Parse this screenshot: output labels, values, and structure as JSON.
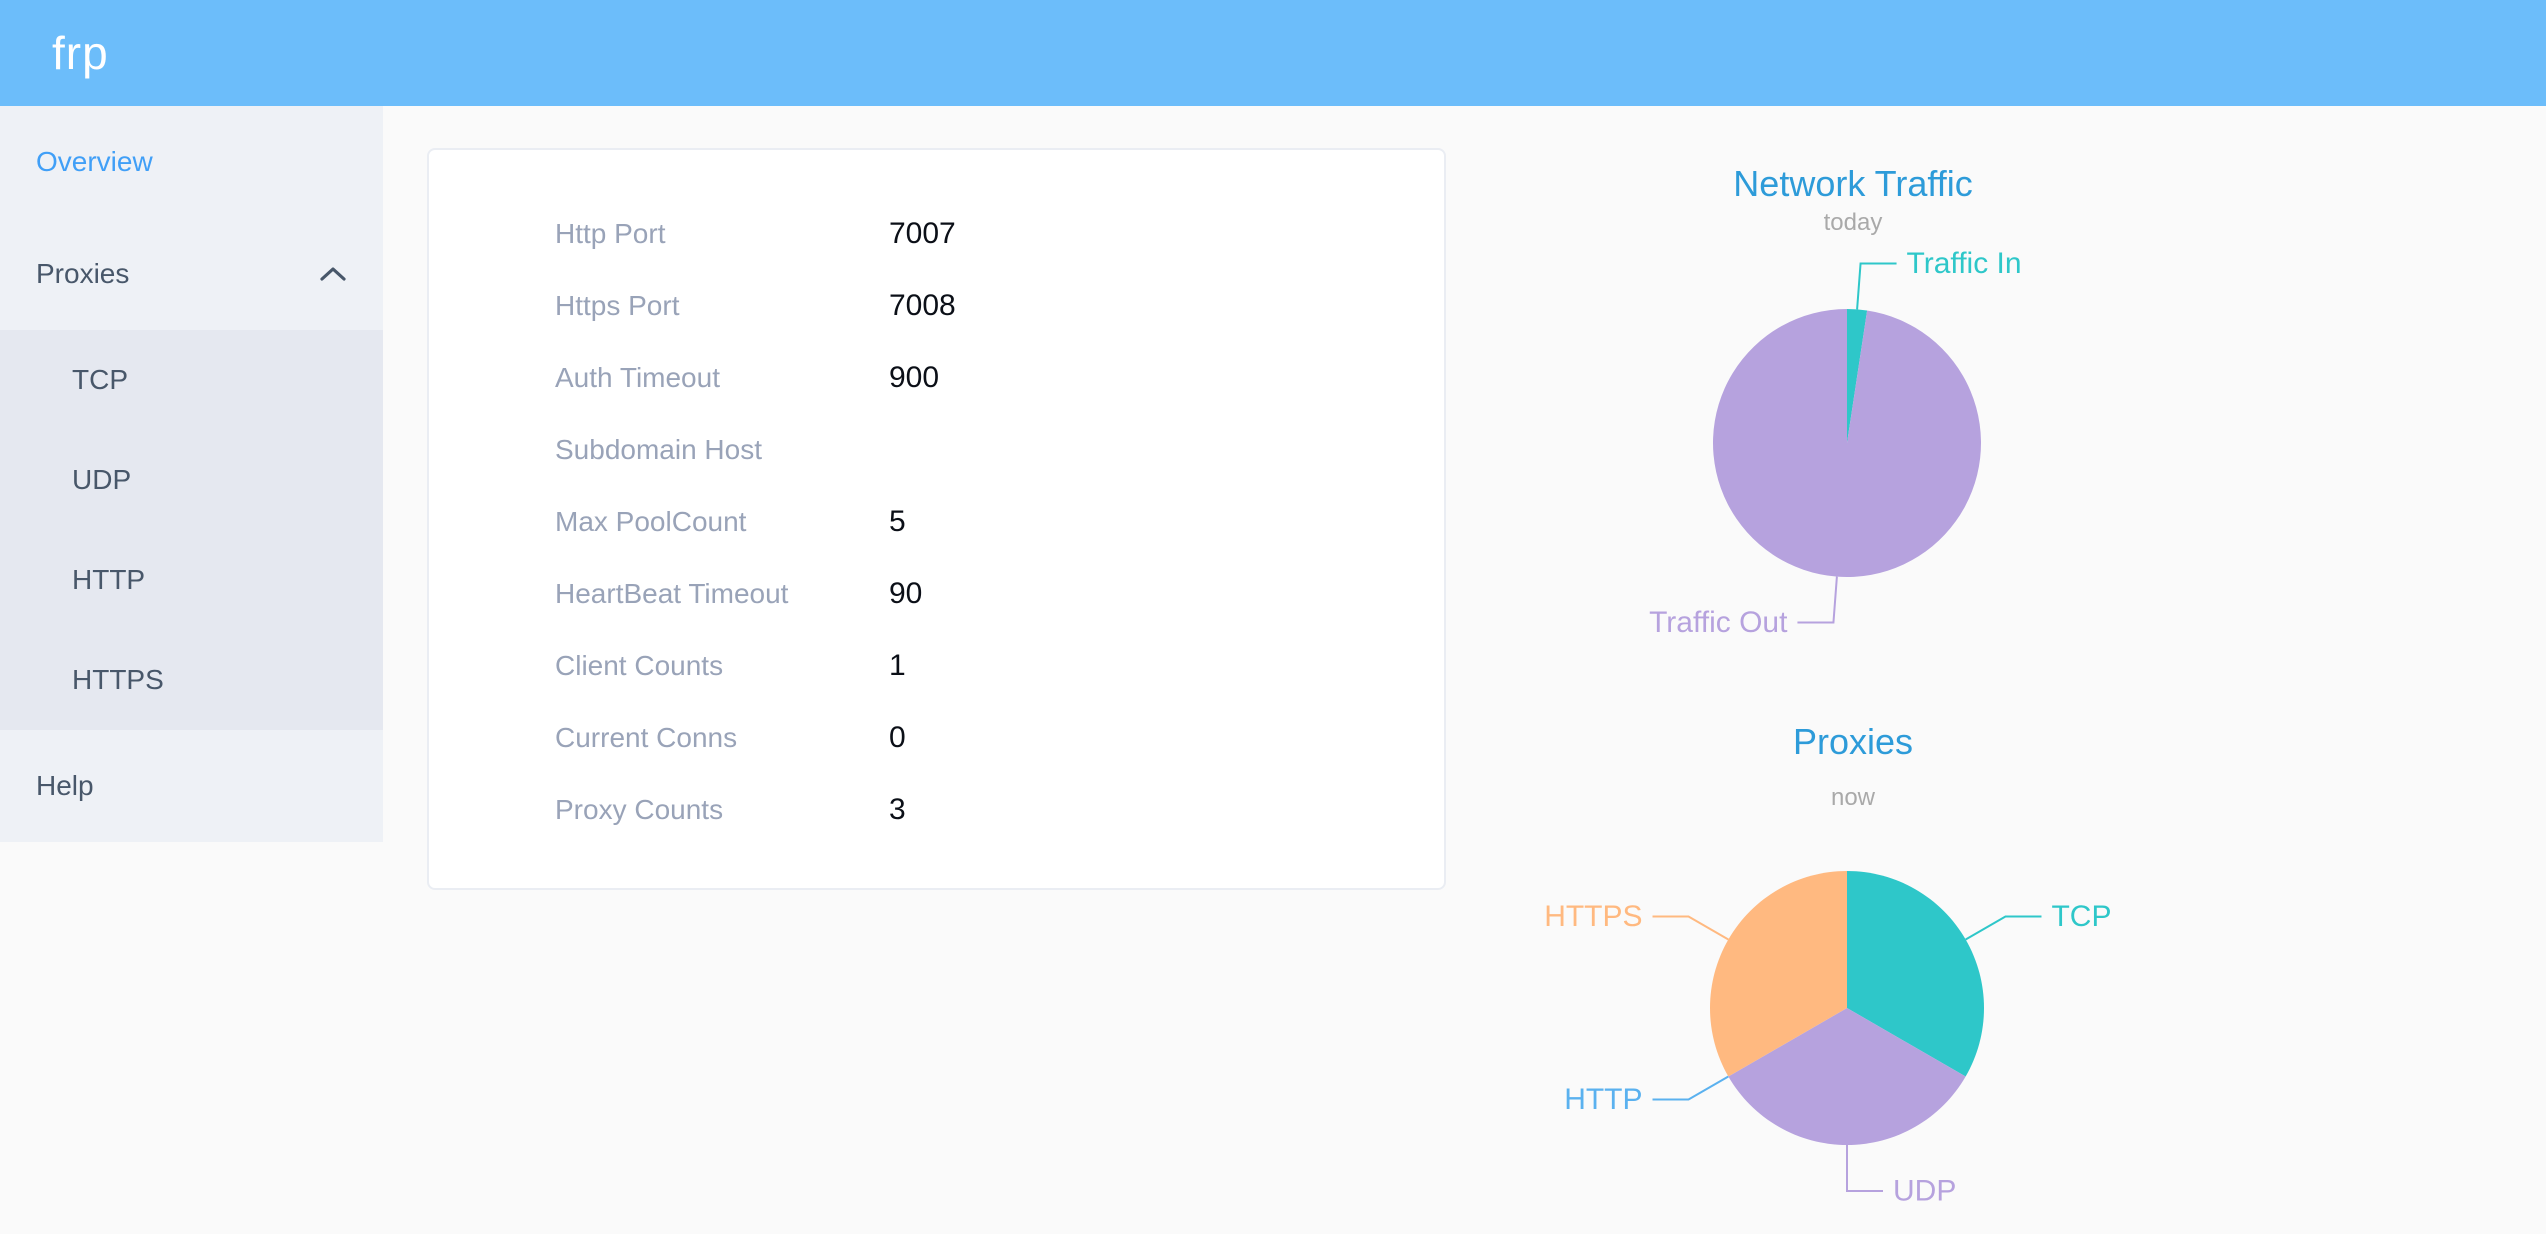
{
  "header": {
    "logo": "frp"
  },
  "sidebar": {
    "items": [
      {
        "label": "Overview",
        "active": true
      },
      {
        "label": "Proxies",
        "expanded": true
      },
      {
        "label": "Help"
      }
    ],
    "proxies_children": [
      "TCP",
      "UDP",
      "HTTP",
      "HTTPS"
    ]
  },
  "overview_card": {
    "rows": [
      {
        "label": "Http Port",
        "value": "7007"
      },
      {
        "label": "Https Port",
        "value": "7008"
      },
      {
        "label": "Auth Timeout",
        "value": "900"
      },
      {
        "label": "Subdomain Host",
        "value": ""
      },
      {
        "label": "Max PoolCount",
        "value": "5"
      },
      {
        "label": "HeartBeat Timeout",
        "value": "90"
      },
      {
        "label": "Client Counts",
        "value": "1"
      },
      {
        "label": "Current Conns",
        "value": "0"
      },
      {
        "label": "Proxy Counts",
        "value": "3"
      }
    ]
  },
  "chart_data": [
    {
      "type": "pie",
      "title": "Network Traffic",
      "subtitle": "today",
      "legend": "none",
      "label_position": "outside",
      "values_estimated": true,
      "slices": [
        {
          "label": "Traffic In",
          "percent": 2.4,
          "color": "#2ec7c9"
        },
        {
          "label": "Traffic Out",
          "percent": 97.6,
          "color": "#b6a2de"
        }
      ]
    },
    {
      "type": "pie",
      "title": "Proxies",
      "subtitle": "now",
      "legend": "none",
      "label_position": "outside",
      "slices": [
        {
          "label": "TCP",
          "value": 1,
          "color": "#2ec7c9"
        },
        {
          "label": "UDP",
          "value": 1,
          "color": "#b6a2de"
        },
        {
          "label": "HTTP",
          "value": 0,
          "color": "#5ab1ef"
        },
        {
          "label": "HTTPS",
          "value": 1,
          "color": "#ffb980"
        }
      ]
    }
  ],
  "colors": {
    "header_blue": "#6cbdfa",
    "active_menu_blue": "#409ff7",
    "menu_text": "#48576a",
    "chart_title_blue": "#2d9bd9",
    "teal": "#2ec7c9",
    "purple": "#b6a2de",
    "blue": "#5ab1ef",
    "orange": "#ffb980"
  }
}
